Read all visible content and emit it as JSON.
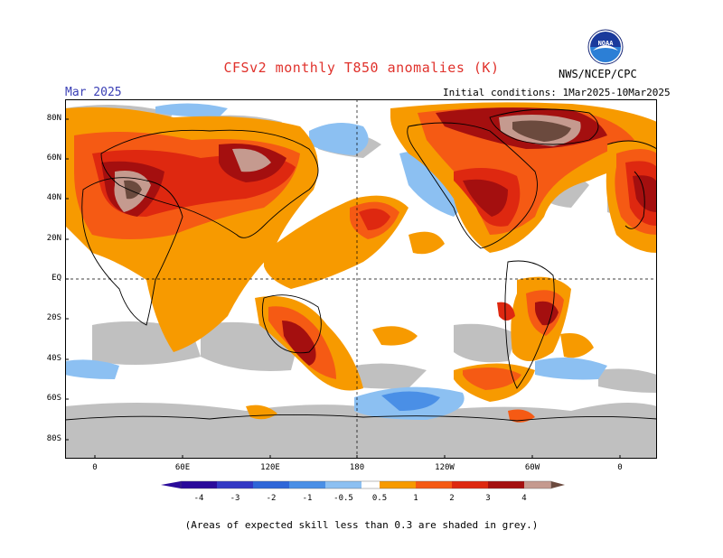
{
  "header": {
    "title": "CFSv2 monthly T850 anomalies (K)",
    "month": "Mar 2025",
    "initial_conditions": "Initial conditions: 1Mar2025-10Mar2025",
    "agency": "NWS/NCEP/CPC",
    "logo_text": "NOAA"
  },
  "axes": {
    "lat_labels": [
      "80N",
      "60N",
      "40N",
      "20N",
      "EQ",
      "20S",
      "40S",
      "60S",
      "80S"
    ],
    "lon_labels": [
      "0",
      "60E",
      "120E",
      "180",
      "120W",
      "60W",
      "0"
    ]
  },
  "colorbar": {
    "labels": [
      "-4",
      "-3",
      "-2",
      "-1",
      "-0.5",
      "0.5",
      "1",
      "2",
      "3",
      "4"
    ],
    "colors": {
      "lt_m4": "#2a0a9a",
      "m4_m3": "#3338c4",
      "m3_m2": "#2f66d8",
      "m2_m1": "#4a8fe6",
      "m1_m05": "#8cc0f2",
      "neutral": "#ffffff",
      "p05_1": "#f79a00",
      "p1_2": "#f55a14",
      "p2_3": "#de2810",
      "p3_4": "#a40f0f",
      "p4_5": "#c59a8f",
      "gt_5": "#6b4a3e"
    }
  },
  "mask_color": "#c0c0c0",
  "footnote": "(Areas of expected skill less than 0.3 are shaded in grey.)"
}
